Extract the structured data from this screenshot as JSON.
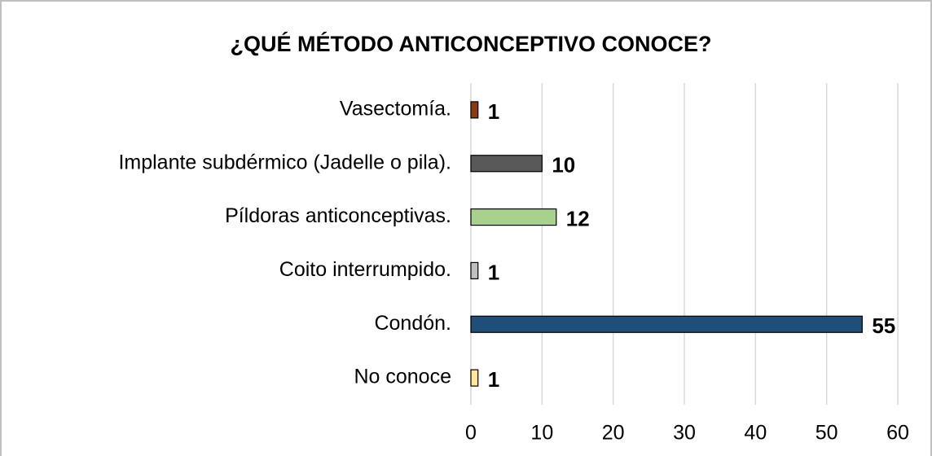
{
  "chart_data": {
    "type": "bar",
    "orientation": "horizontal",
    "title": "¿QUÉ MÉTODO ANTICONCEPTIVO CONOCE?",
    "categories": [
      "Vasectomía.",
      "Implante subdérmico (Jadelle o pila).",
      "Píldoras anticonceptivas.",
      "Coito interrumpido.",
      "Condón.",
      "No conoce"
    ],
    "values": [
      1,
      10,
      12,
      1,
      55,
      1
    ],
    "colors": [
      "#8b3a0f",
      "#595959",
      "#a9d18e",
      "#bfbfbf",
      "#1f4e79",
      "#ffe699"
    ],
    "xlim": [
      0,
      60
    ],
    "xticks": [
      0,
      10,
      20,
      30,
      40,
      50,
      60
    ],
    "grid": true
  }
}
